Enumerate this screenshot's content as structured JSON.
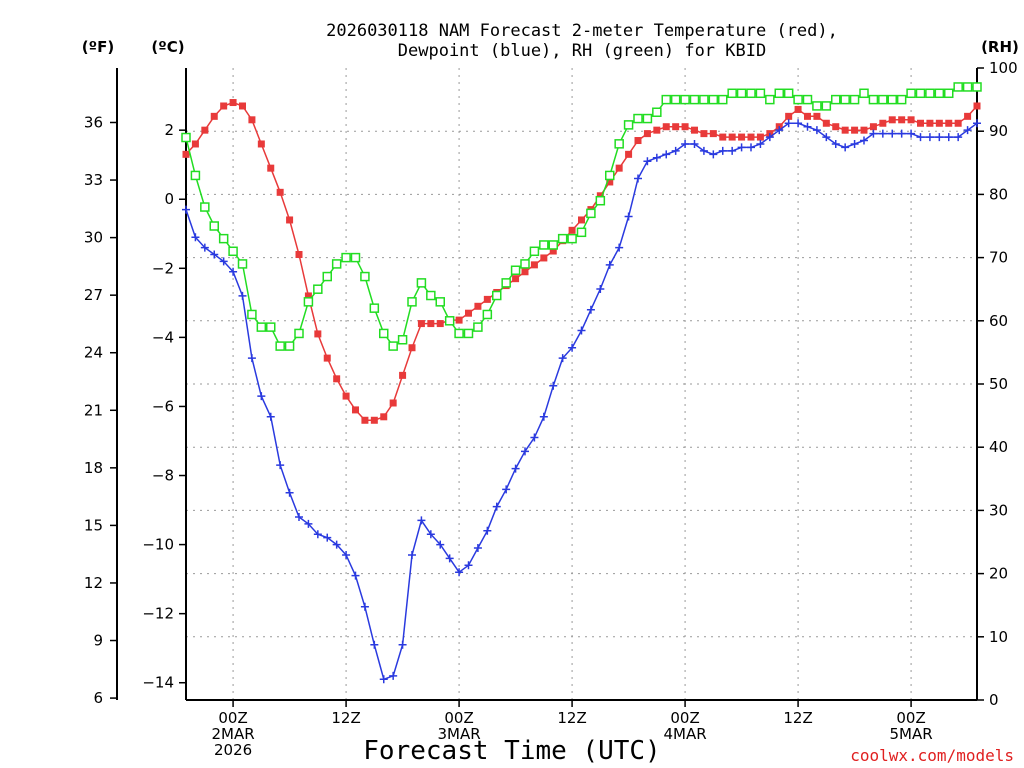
{
  "chart_data": {
    "type": "line",
    "title_line1": "2026030118 NAM Forecast 2-meter Temperature (red),",
    "title_line2": "Dewpoint (blue), RH (green) for KBID",
    "xlabel": "Forecast Time (UTC)",
    "credit": "coolwx.com/models",
    "units": {
      "fahrenheit": "(ºF)",
      "celsius": "(ºC)",
      "rh": "(RH)"
    },
    "x_range_hours": [
      -5,
      79
    ],
    "celsius_ylim": [
      -14.5,
      3.8
    ],
    "rh_ylim": [
      0,
      100
    ],
    "celsius_ticks": [
      {
        "value": 2,
        "label": "2"
      },
      {
        "value": 0,
        "label": "0"
      },
      {
        "value": -2,
        "label": "−2"
      },
      {
        "value": -4,
        "label": "−4"
      },
      {
        "value": -6,
        "label": "−6"
      },
      {
        "value": -8,
        "label": "−8"
      },
      {
        "value": -10,
        "label": "−10"
      },
      {
        "value": -12,
        "label": "−12"
      },
      {
        "value": -14,
        "label": "−14"
      }
    ],
    "fahrenheit_ticks": [
      {
        "value": 36,
        "label": "36"
      },
      {
        "value": 33,
        "label": "33"
      },
      {
        "value": 30,
        "label": "30"
      },
      {
        "value": 27,
        "label": "27"
      },
      {
        "value": 24,
        "label": "24"
      },
      {
        "value": 21,
        "label": "21"
      },
      {
        "value": 18,
        "label": "18"
      },
      {
        "value": 15,
        "label": "15"
      },
      {
        "value": 12,
        "label": "12"
      },
      {
        "value": 9,
        "label": "9"
      },
      {
        "value": 6,
        "label": "6"
      }
    ],
    "rh_ticks": [
      {
        "value": 100,
        "label": "100"
      },
      {
        "value": 90,
        "label": "90"
      },
      {
        "value": 80,
        "label": "80"
      },
      {
        "value": 70,
        "label": "70"
      },
      {
        "value": 60,
        "label": "60"
      },
      {
        "value": 50,
        "label": "50"
      },
      {
        "value": 40,
        "label": "40"
      },
      {
        "value": 30,
        "label": "30"
      },
      {
        "value": 20,
        "label": "20"
      },
      {
        "value": 10,
        "label": "10"
      },
      {
        "value": 0,
        "label": "0"
      }
    ],
    "x_ticks": [
      {
        "hour": 0,
        "lines": [
          "00Z",
          "2MAR",
          "2026"
        ]
      },
      {
        "hour": 12,
        "lines": [
          "12Z"
        ]
      },
      {
        "hour": 24,
        "lines": [
          "00Z",
          "3MAR"
        ]
      },
      {
        "hour": 36,
        "lines": [
          "12Z"
        ]
      },
      {
        "hour": 48,
        "lines": [
          "00Z",
          "4MAR"
        ]
      },
      {
        "hour": 60,
        "lines": [
          "12Z"
        ]
      },
      {
        "hour": 72,
        "lines": [
          "00Z",
          "5MAR"
        ]
      }
    ],
    "x_hours": [
      -5,
      -4,
      -3,
      -2,
      -1,
      0,
      1,
      2,
      3,
      4,
      5,
      6,
      7,
      8,
      9,
      10,
      11,
      12,
      13,
      14,
      15,
      16,
      17,
      18,
      19,
      20,
      21,
      22,
      23,
      24,
      25,
      26,
      27,
      28,
      29,
      30,
      31,
      32,
      33,
      34,
      35,
      36,
      37,
      38,
      39,
      40,
      41,
      42,
      43,
      44,
      45,
      46,
      47,
      48,
      49,
      50,
      51,
      52,
      53,
      54,
      55,
      56,
      57,
      58,
      59,
      60,
      61,
      62,
      63,
      64,
      65,
      66,
      67,
      68,
      69,
      70,
      71,
      72,
      73,
      74,
      75,
      76,
      77,
      78,
      79
    ],
    "series": [
      {
        "name": "Temperature",
        "axis": "celsius",
        "color": "#e83a3a",
        "marker": "square-filled",
        "values": [
          1.3,
          1.6,
          2.0,
          2.4,
          2.7,
          2.8,
          2.7,
          2.3,
          1.6,
          0.9,
          0.2,
          -0.6,
          -1.6,
          -2.8,
          -3.9,
          -4.6,
          -5.2,
          -5.7,
          -6.1,
          -6.4,
          -6.4,
          -6.3,
          -5.9,
          -5.1,
          -4.3,
          -3.6,
          -3.6,
          -3.6,
          -3.5,
          -3.5,
          -3.3,
          -3.1,
          -2.9,
          -2.7,
          -2.5,
          -2.3,
          -2.1,
          -1.9,
          -1.7,
          -1.5,
          -1.2,
          -0.9,
          -0.6,
          -0.3,
          0.1,
          0.5,
          0.9,
          1.3,
          1.7,
          1.9,
          2.0,
          2.1,
          2.1,
          2.1,
          2.0,
          1.9,
          1.9,
          1.8,
          1.8,
          1.8,
          1.8,
          1.8,
          1.9,
          2.1,
          2.4,
          2.6,
          2.4,
          2.4,
          2.2,
          2.1,
          2.0,
          2.0,
          2.0,
          2.1,
          2.2,
          2.3,
          2.3,
          2.3,
          2.2,
          2.2,
          2.2,
          2.2,
          2.2,
          2.4,
          2.7
        ]
      },
      {
        "name": "Dewpoint",
        "axis": "celsius",
        "color": "#2a3adf",
        "marker": "plus",
        "values": [
          -0.3,
          -1.1,
          -1.4,
          -1.6,
          -1.8,
          -2.1,
          -2.8,
          -4.6,
          -5.7,
          -6.3,
          -7.7,
          -8.5,
          -9.2,
          -9.4,
          -9.7,
          -9.8,
          -10.0,
          -10.3,
          -10.9,
          -11.8,
          -12.9,
          -13.9,
          -13.8,
          -12.9,
          -10.3,
          -9.3,
          -9.7,
          -10.0,
          -10.4,
          -10.8,
          -10.6,
          -10.1,
          -9.6,
          -8.9,
          -8.4,
          -7.8,
          -7.3,
          -6.9,
          -6.3,
          -5.4,
          -4.6,
          -4.3,
          -3.8,
          -3.2,
          -2.6,
          -1.9,
          -1.4,
          -0.5,
          0.6,
          1.1,
          1.2,
          1.3,
          1.4,
          1.6,
          1.6,
          1.4,
          1.3,
          1.4,
          1.4,
          1.5,
          1.5,
          1.6,
          1.8,
          2.0,
          2.2,
          2.2,
          2.1,
          2.0,
          1.8,
          1.6,
          1.5,
          1.6,
          1.7,
          1.9,
          1.9,
          1.9,
          1.9,
          1.9,
          1.8,
          1.8,
          1.8,
          1.8,
          1.8,
          2.0,
          2.2
        ]
      },
      {
        "name": "RH",
        "axis": "rh",
        "color": "#22dd22",
        "marker": "square-open",
        "values": [
          89,
          83,
          78,
          75,
          73,
          71,
          69,
          61,
          59,
          59,
          56,
          56,
          58,
          63,
          65,
          67,
          69,
          70,
          70,
          67,
          62,
          58,
          56,
          57,
          63,
          66,
          64,
          63,
          60,
          58,
          58,
          59,
          61,
          64,
          66,
          68,
          69,
          71,
          72,
          72,
          73,
          73,
          74,
          77,
          79,
          83,
          88,
          91,
          92,
          92,
          93,
          95,
          95,
          95,
          95,
          95,
          95,
          95,
          96,
          96,
          96,
          96,
          95,
          96,
          96,
          95,
          95,
          94,
          94,
          95,
          95,
          95,
          96,
          95,
          95,
          95,
          95,
          96,
          96,
          96,
          96,
          96,
          97,
          97,
          97
        ]
      }
    ]
  }
}
